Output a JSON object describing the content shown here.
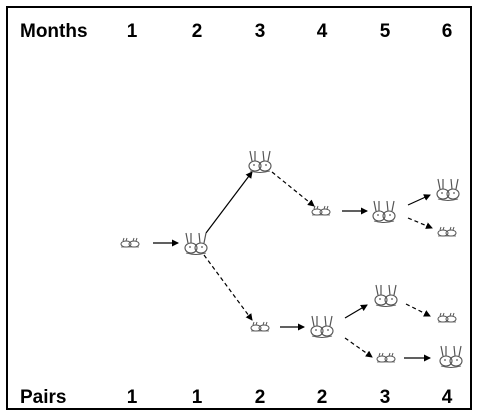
{
  "header": {
    "label": "Months",
    "values": [
      "1",
      "2",
      "3",
      "4",
      "5",
      "6"
    ]
  },
  "footer": {
    "label": "Pairs",
    "values": [
      "1",
      "1",
      "2",
      "2",
      "3",
      "4"
    ]
  },
  "legend_meaning": {
    "small_icon": "baby rabbit pair",
    "large_icon": "adult rabbit pair",
    "solid_arrow": "pair matures / stays",
    "dashed_arrow": "pair gives birth to new pair"
  },
  "colors": {
    "ink": "#000000",
    "icon_stroke": "#555555",
    "background": "#ffffff"
  }
}
